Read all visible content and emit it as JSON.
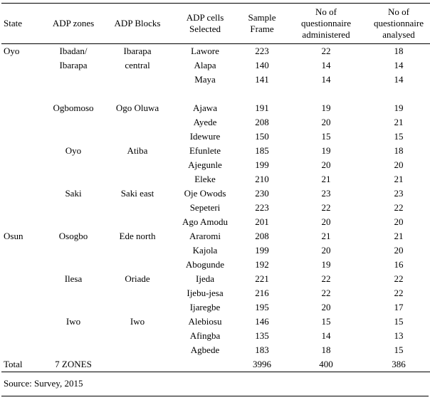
{
  "table": {
    "headers": [
      "State",
      "ADP zones",
      "ADP Blocks",
      "ADP cells\nSelected",
      "Sample\nFrame",
      "No of\nquestionnaire\nadministered",
      "No of\nquestionnaire\nanalysed"
    ],
    "rows": [
      [
        "Oyo",
        "Ibadan/",
        "Ibarapa",
        "Lawore",
        "223",
        "22",
        "18"
      ],
      [
        "",
        "Ibarapa",
        "central",
        "Alapa",
        "140",
        "14",
        "14"
      ],
      [
        "",
        "",
        "",
        "Maya",
        "141",
        "14",
        "14"
      ],
      [
        "",
        "",
        "",
        "",
        "",
        "",
        ""
      ],
      [
        "",
        "Ogbomoso",
        "Ogo Oluwa",
        "Ajawa",
        "191",
        "19",
        "19"
      ],
      [
        "",
        "",
        "",
        "Ayede",
        "208",
        "20",
        "21"
      ],
      [
        "",
        "",
        "",
        "Idewure",
        "150",
        "15",
        "15"
      ],
      [
        "",
        "Oyo",
        "Atiba",
        "Efunlete",
        "185",
        "19",
        "18"
      ],
      [
        "",
        "",
        "",
        "Ajegunle",
        "199",
        "20",
        "20"
      ],
      [
        "",
        "",
        "",
        "Eleke",
        "210",
        "21",
        "21"
      ],
      [
        "",
        "Saki",
        "Saki east",
        "Oje Owods",
        "230",
        "23",
        "23"
      ],
      [
        "",
        "",
        "",
        "Sepeteri",
        "223",
        "22",
        "22"
      ],
      [
        "",
        "",
        "",
        "Ago Amodu",
        "201",
        "20",
        "20"
      ],
      [
        "Osun",
        "Osogbo",
        "Ede north",
        "Araromi",
        "208",
        "21",
        "21"
      ],
      [
        "",
        "",
        "",
        "Kajola",
        "199",
        "20",
        "20"
      ],
      [
        "",
        "",
        "",
        "Abogunde",
        "192",
        "19",
        "16"
      ],
      [
        "",
        "Ilesa",
        "Oriade",
        "Ijeda",
        "221",
        "22",
        "22"
      ],
      [
        "",
        "",
        "",
        "Ijebu-jesa",
        "216",
        "22",
        "22"
      ],
      [
        "",
        "",
        "",
        "Ijaregbe",
        "195",
        "20",
        "17"
      ],
      [
        "",
        "Iwo",
        "Iwo",
        "Alebiosu",
        "146",
        "15",
        "15"
      ],
      [
        "",
        "",
        "",
        "Afingba",
        "135",
        "14",
        "13"
      ],
      [
        "",
        "",
        "",
        "Agbede",
        "183",
        "18",
        "15"
      ]
    ],
    "total_row": [
      "Total",
      "7 ZONES",
      "",
      "",
      "3996",
      "400",
      "386"
    ]
  },
  "source": "Source: Survey, 2015"
}
